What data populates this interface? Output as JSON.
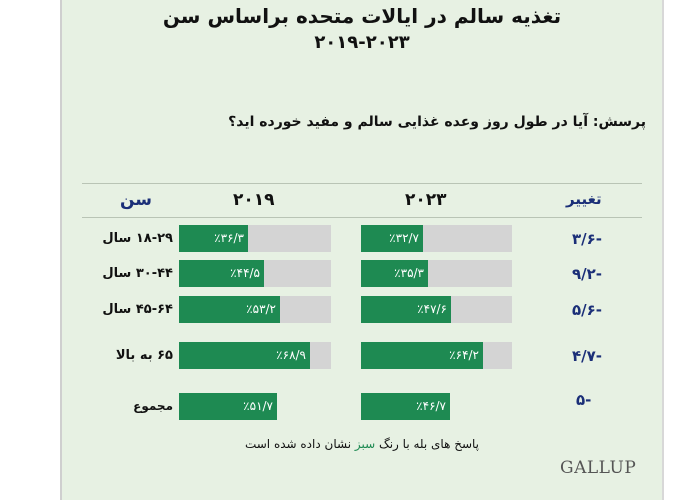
{
  "title": "تغذیه سالم در ایالات متحده براساس سن",
  "subtitle": "۲۰۱۹-۲۰۲۳",
  "question": "پرسش: آیا در طول روز وعده غذایی سالم و مفید خورده اید؟",
  "footnote": {
    "before": "پاسخ های بله با رنگ ",
    "green_word": "سبز",
    "after": " نشان داده شده است"
  },
  "brand": "GALLUP",
  "colors": {
    "bar": "#1e8a52",
    "track": "#d4d4d4",
    "background": "#e7f1e3",
    "header_blue": "#1b2f78"
  },
  "chart_data": {
    "type": "bar",
    "title": "تغذیه سالم در ایالات متحده براساس سن",
    "subtitle": "۲۰۱۹-۲۰۲۳",
    "column_headers": {
      "age": "سن",
      "y2019": "۲۰۱۹",
      "y2023": "۲۰۲۳",
      "change": "تغییر"
    },
    "categories": [
      "۱۸-۲۹ سال",
      "۳۰-۴۴ سال",
      "۴۵-۶۴ سال",
      "۶۵ به بالا",
      "مجموع"
    ],
    "series": [
      {
        "name": "۲۰۱۹",
        "values": [
          36.3,
          44.5,
          53.2,
          68.9,
          51.7
        ],
        "labels": [
          "٪۳۶/۳",
          "٪۴۴/۵",
          "٪۵۳/۲",
          "٪۶۸/۹",
          "٪۵۱/۷"
        ]
      },
      {
        "name": "۲۰۲۳",
        "values": [
          32.7,
          35.3,
          47.6,
          64.2,
          46.7
        ],
        "labels": [
          "٪۳۲/۷",
          "٪۳۵/۳",
          "٪۴۷/۶",
          "٪۶۴/۲",
          "٪۴۶/۷"
        ]
      }
    ],
    "changes": [
      -3.6,
      -9.2,
      -5.6,
      -4.7,
      -5
    ],
    "change_labels": [
      "۳/۶-",
      "۹/۲-",
      "۵/۶-",
      "۴/۷-",
      "۵-"
    ],
    "ylim": [
      0,
      100
    ]
  }
}
